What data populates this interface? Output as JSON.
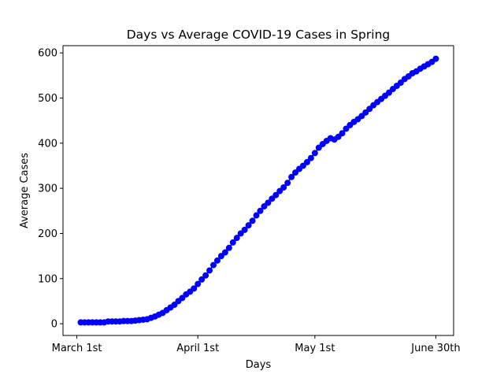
{
  "chart_data": {
    "type": "line",
    "title": "Days vs Average COVID-19 Cases in Spring",
    "x_label": "Days",
    "y_label": "Average Cases",
    "x": [
      1,
      2,
      3,
      4,
      5,
      6,
      7,
      8,
      9,
      10,
      11,
      12,
      13,
      14,
      15,
      16,
      17,
      18,
      19,
      20,
      21,
      22,
      23,
      24,
      25,
      26,
      27,
      28,
      29,
      30,
      31,
      32,
      33,
      34,
      35,
      36,
      37,
      38,
      39,
      40,
      41,
      42,
      43,
      44,
      45,
      46,
      47,
      48,
      49,
      50,
      51,
      52,
      53,
      54,
      55,
      56,
      57,
      58,
      59,
      60,
      61,
      62,
      63,
      64,
      65,
      66,
      67,
      68,
      69,
      70,
      71,
      72,
      73,
      74,
      75,
      76,
      77,
      78,
      79,
      80,
      81,
      82,
      83,
      84,
      85,
      86,
      87,
      88,
      89,
      90,
      91,
      92
    ],
    "series": [
      {
        "color": "#0000ff",
        "marker": "o",
        "values": [
          3,
          3,
          3,
          3,
          3,
          3,
          3,
          5,
          5,
          5,
          5,
          6,
          6,
          6,
          7,
          8,
          9,
          10,
          13,
          16,
          20,
          24,
          30,
          36,
          42,
          50,
          57,
          65,
          71,
          78,
          88,
          98,
          107,
          118,
          130,
          140,
          150,
          158,
          168,
          180,
          190,
          200,
          208,
          218,
          228,
          240,
          250,
          260,
          268,
          277,
          285,
          294,
          302,
          312,
          325,
          335,
          343,
          350,
          358,
          367,
          378,
          390,
          398,
          405,
          411,
          408,
          414,
          422,
          432,
          440,
          447,
          453,
          460,
          468,
          476,
          484,
          491,
          498,
          505,
          512,
          520,
          527,
          534,
          542,
          548,
          555,
          559,
          565,
          570,
          575,
          580,
          587
        ]
      }
    ],
    "xlim": [
      -3.55,
      96.55
    ],
    "xticks": [
      {
        "value": 0,
        "label": "March 1st"
      },
      {
        "value": 31,
        "label": "April 1st"
      },
      {
        "value": 61,
        "label": "May 1st"
      },
      {
        "value": 92,
        "label": "June 30th"
      }
    ],
    "ylim": [
      -26,
      616
    ],
    "yticks": [
      0,
      100,
      200,
      300,
      400,
      500,
      600
    ],
    "grid": false
  }
}
